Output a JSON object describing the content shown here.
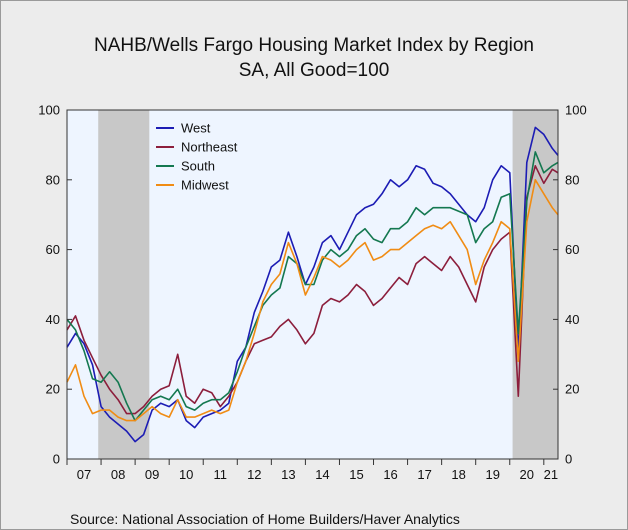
{
  "chart_data": {
    "type": "line",
    "title": "NAHB/Wells Fargo Housing Market Index by Region",
    "subtitle": "SA, All Good=100",
    "source": "Source:  National Association of Home Builders/Haver Analytics",
    "xlabel": "",
    "ylabel": "",
    "x_tick_labels": [
      "07",
      "08",
      "09",
      "10",
      "11",
      "12",
      "13",
      "14",
      "15",
      "16",
      "17",
      "18",
      "19",
      "20",
      "21"
    ],
    "y_ticks_left": [
      "0",
      "20",
      "40",
      "60",
      "80",
      "100"
    ],
    "y_ticks_right": [
      "0",
      "20",
      "40",
      "60",
      "80",
      "100"
    ],
    "ylim": [
      0,
      100
    ],
    "xlim": [
      "2007-01",
      "2021-06"
    ],
    "grid": false,
    "legend_position": "top-left",
    "recession_shading": [
      [
        "2007-12",
        "2009-06"
      ],
      [
        "2020-02",
        "2021-06"
      ]
    ],
    "series": [
      {
        "name": "West",
        "color": "#1c1cb4",
        "points": [
          [
            "2007-01",
            32
          ],
          [
            "2007-04",
            36
          ],
          [
            "2007-07",
            33
          ],
          [
            "2007-10",
            27
          ],
          [
            "2008-01",
            15
          ],
          [
            "2008-04",
            12
          ],
          [
            "2008-07",
            10
          ],
          [
            "2008-10",
            8
          ],
          [
            "2009-01",
            5
          ],
          [
            "2009-04",
            7
          ],
          [
            "2009-07",
            14
          ],
          [
            "2009-10",
            16
          ],
          [
            "2010-01",
            15
          ],
          [
            "2010-04",
            17
          ],
          [
            "2010-07",
            11
          ],
          [
            "2010-10",
            9
          ],
          [
            "2011-01",
            12
          ],
          [
            "2011-04",
            13
          ],
          [
            "2011-07",
            14
          ],
          [
            "2011-10",
            16
          ],
          [
            "2012-01",
            28
          ],
          [
            "2012-04",
            32
          ],
          [
            "2012-07",
            42
          ],
          [
            "2012-10",
            48
          ],
          [
            "2013-01",
            55
          ],
          [
            "2013-04",
            57
          ],
          [
            "2013-07",
            65
          ],
          [
            "2013-10",
            58
          ],
          [
            "2014-01",
            50
          ],
          [
            "2014-04",
            55
          ],
          [
            "2014-07",
            62
          ],
          [
            "2014-10",
            64
          ],
          [
            "2015-01",
            60
          ],
          [
            "2015-04",
            65
          ],
          [
            "2015-07",
            70
          ],
          [
            "2015-10",
            72
          ],
          [
            "2016-01",
            73
          ],
          [
            "2016-04",
            76
          ],
          [
            "2016-07",
            80
          ],
          [
            "2016-10",
            78
          ],
          [
            "2017-01",
            80
          ],
          [
            "2017-04",
            84
          ],
          [
            "2017-07",
            83
          ],
          [
            "2017-10",
            79
          ],
          [
            "2018-01",
            78
          ],
          [
            "2018-04",
            76
          ],
          [
            "2018-07",
            73
          ],
          [
            "2018-10",
            70
          ],
          [
            "2019-01",
            68
          ],
          [
            "2019-04",
            72
          ],
          [
            "2019-07",
            80
          ],
          [
            "2019-10",
            84
          ],
          [
            "2020-01",
            82
          ],
          [
            "2020-04",
            30
          ],
          [
            "2020-07",
            85
          ],
          [
            "2020-10",
            95
          ],
          [
            "2021-01",
            93
          ],
          [
            "2021-04",
            89
          ],
          [
            "2021-06",
            87
          ]
        ]
      },
      {
        "name": "Northeast",
        "color": "#8c1e3c",
        "points": [
          [
            "2007-01",
            37
          ],
          [
            "2007-04",
            41
          ],
          [
            "2007-07",
            34
          ],
          [
            "2007-10",
            29
          ],
          [
            "2008-01",
            24
          ],
          [
            "2008-04",
            20
          ],
          [
            "2008-07",
            17
          ],
          [
            "2008-10",
            13
          ],
          [
            "2009-01",
            13
          ],
          [
            "2009-04",
            15
          ],
          [
            "2009-07",
            18
          ],
          [
            "2009-10",
            20
          ],
          [
            "2010-01",
            21
          ],
          [
            "2010-04",
            30
          ],
          [
            "2010-07",
            18
          ],
          [
            "2010-10",
            16
          ],
          [
            "2011-01",
            20
          ],
          [
            "2011-04",
            19
          ],
          [
            "2011-07",
            15
          ],
          [
            "2011-10",
            18
          ],
          [
            "2012-01",
            22
          ],
          [
            "2012-04",
            28
          ],
          [
            "2012-07",
            33
          ],
          [
            "2012-10",
            34
          ],
          [
            "2013-01",
            35
          ],
          [
            "2013-04",
            38
          ],
          [
            "2013-07",
            40
          ],
          [
            "2013-10",
            37
          ],
          [
            "2014-01",
            33
          ],
          [
            "2014-04",
            36
          ],
          [
            "2014-07",
            44
          ],
          [
            "2014-10",
            46
          ],
          [
            "2015-01",
            45
          ],
          [
            "2015-04",
            47
          ],
          [
            "2015-07",
            50
          ],
          [
            "2015-10",
            48
          ],
          [
            "2016-01",
            44
          ],
          [
            "2016-04",
            46
          ],
          [
            "2016-07",
            49
          ],
          [
            "2016-10",
            52
          ],
          [
            "2017-01",
            50
          ],
          [
            "2017-04",
            56
          ],
          [
            "2017-07",
            58
          ],
          [
            "2017-10",
            56
          ],
          [
            "2018-01",
            54
          ],
          [
            "2018-04",
            58
          ],
          [
            "2018-07",
            55
          ],
          [
            "2018-10",
            50
          ],
          [
            "2019-01",
            45
          ],
          [
            "2019-04",
            55
          ],
          [
            "2019-07",
            60
          ],
          [
            "2019-10",
            63
          ],
          [
            "2020-01",
            65
          ],
          [
            "2020-04",
            18
          ],
          [
            "2020-07",
            75
          ],
          [
            "2020-10",
            84
          ],
          [
            "2021-01",
            79
          ],
          [
            "2021-04",
            83
          ],
          [
            "2021-06",
            82
          ]
        ]
      },
      {
        "name": "South",
        "color": "#147850",
        "points": [
          [
            "2007-01",
            40
          ],
          [
            "2007-04",
            37
          ],
          [
            "2007-07",
            31
          ],
          [
            "2007-10",
            23
          ],
          [
            "2008-01",
            22
          ],
          [
            "2008-04",
            25
          ],
          [
            "2008-07",
            22
          ],
          [
            "2008-10",
            16
          ],
          [
            "2009-01",
            11
          ],
          [
            "2009-04",
            14
          ],
          [
            "2009-07",
            17
          ],
          [
            "2009-10",
            18
          ],
          [
            "2010-01",
            17
          ],
          [
            "2010-04",
            20
          ],
          [
            "2010-07",
            15
          ],
          [
            "2010-10",
            14
          ],
          [
            "2011-01",
            16
          ],
          [
            "2011-04",
            17
          ],
          [
            "2011-07",
            17
          ],
          [
            "2011-10",
            19
          ],
          [
            "2012-01",
            25
          ],
          [
            "2012-04",
            32
          ],
          [
            "2012-07",
            38
          ],
          [
            "2012-10",
            44
          ],
          [
            "2013-01",
            47
          ],
          [
            "2013-04",
            49
          ],
          [
            "2013-07",
            58
          ],
          [
            "2013-10",
            56
          ],
          [
            "2014-01",
            50
          ],
          [
            "2014-04",
            50
          ],
          [
            "2014-07",
            57
          ],
          [
            "2014-10",
            60
          ],
          [
            "2015-01",
            58
          ],
          [
            "2015-04",
            60
          ],
          [
            "2015-07",
            64
          ],
          [
            "2015-10",
            66
          ],
          [
            "2016-01",
            63
          ],
          [
            "2016-04",
            62
          ],
          [
            "2016-07",
            66
          ],
          [
            "2016-10",
            66
          ],
          [
            "2017-01",
            68
          ],
          [
            "2017-04",
            72
          ],
          [
            "2017-07",
            70
          ],
          [
            "2017-10",
            72
          ],
          [
            "2018-01",
            72
          ],
          [
            "2018-04",
            72
          ],
          [
            "2018-07",
            71
          ],
          [
            "2018-10",
            70
          ],
          [
            "2019-01",
            62
          ],
          [
            "2019-04",
            66
          ],
          [
            "2019-07",
            68
          ],
          [
            "2019-10",
            75
          ],
          [
            "2020-01",
            76
          ],
          [
            "2020-04",
            36
          ],
          [
            "2020-07",
            74
          ],
          [
            "2020-10",
            88
          ],
          [
            "2021-01",
            82
          ],
          [
            "2021-04",
            84
          ],
          [
            "2021-06",
            85
          ]
        ]
      },
      {
        "name": "Midwest",
        "color": "#f08c14",
        "points": [
          [
            "2007-01",
            22
          ],
          [
            "2007-04",
            27
          ],
          [
            "2007-07",
            18
          ],
          [
            "2007-10",
            13
          ],
          [
            "2008-01",
            14
          ],
          [
            "2008-04",
            14
          ],
          [
            "2008-07",
            12
          ],
          [
            "2008-10",
            11
          ],
          [
            "2009-01",
            11
          ],
          [
            "2009-04",
            13
          ],
          [
            "2009-07",
            15
          ],
          [
            "2009-10",
            13
          ],
          [
            "2010-01",
            12
          ],
          [
            "2010-04",
            17
          ],
          [
            "2010-07",
            12
          ],
          [
            "2010-10",
            12
          ],
          [
            "2011-01",
            13
          ],
          [
            "2011-04",
            14
          ],
          [
            "2011-07",
            13
          ],
          [
            "2011-10",
            14
          ],
          [
            "2012-01",
            22
          ],
          [
            "2012-04",
            28
          ],
          [
            "2012-07",
            36
          ],
          [
            "2012-10",
            45
          ],
          [
            "2013-01",
            50
          ],
          [
            "2013-04",
            53
          ],
          [
            "2013-07",
            62
          ],
          [
            "2013-10",
            56
          ],
          [
            "2014-01",
            47
          ],
          [
            "2014-04",
            52
          ],
          [
            "2014-07",
            58
          ],
          [
            "2014-10",
            57
          ],
          [
            "2015-01",
            55
          ],
          [
            "2015-04",
            57
          ],
          [
            "2015-07",
            60
          ],
          [
            "2015-10",
            62
          ],
          [
            "2016-01",
            57
          ],
          [
            "2016-04",
            58
          ],
          [
            "2016-07",
            60
          ],
          [
            "2016-10",
            60
          ],
          [
            "2017-01",
            62
          ],
          [
            "2017-04",
            64
          ],
          [
            "2017-07",
            66
          ],
          [
            "2017-10",
            67
          ],
          [
            "2018-01",
            66
          ],
          [
            "2018-04",
            68
          ],
          [
            "2018-07",
            64
          ],
          [
            "2018-10",
            60
          ],
          [
            "2019-01",
            50
          ],
          [
            "2019-04",
            57
          ],
          [
            "2019-07",
            62
          ],
          [
            "2019-10",
            68
          ],
          [
            "2020-01",
            66
          ],
          [
            "2020-04",
            28
          ],
          [
            "2020-07",
            68
          ],
          [
            "2020-10",
            80
          ],
          [
            "2021-01",
            76
          ],
          [
            "2021-04",
            72
          ],
          [
            "2021-06",
            70
          ]
        ]
      }
    ]
  }
}
